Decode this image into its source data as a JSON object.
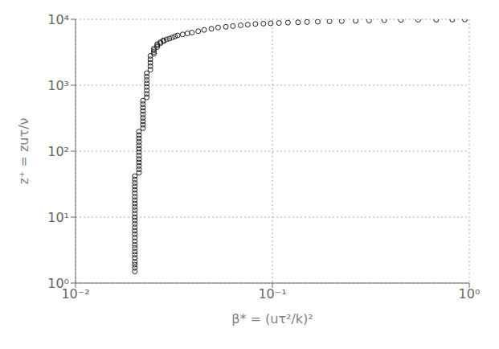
{
  "chart_data": {
    "type": "scatter",
    "xlabel": "β* = (uτ²/k)²",
    "ylabel": "z⁺ = zuτ/ν",
    "log": true,
    "grid": true,
    "color": "#222222",
    "marker": "circle",
    "xlim": [
      0.01,
      1
    ],
    "ylim": [
      1,
      10000
    ],
    "xticks": [
      {
        "value": 0.01,
        "label": "10⁻²"
      },
      {
        "value": 0.1,
        "label": "10⁻¹"
      },
      {
        "value": 1,
        "label": "10⁰"
      }
    ],
    "yticks": [
      {
        "value": 1,
        "label": "10⁰"
      },
      {
        "value": 10,
        "label": "10¹"
      },
      {
        "value": 100,
        "label": "10²"
      },
      {
        "value": 1000,
        "label": "10³"
      },
      {
        "value": 10000,
        "label": "10⁴"
      }
    ],
    "x": [
      0.02,
      0.02,
      0.02,
      0.02,
      0.02,
      0.02,
      0.02,
      0.02,
      0.02,
      0.02,
      0.02,
      0.02,
      0.02,
      0.02,
      0.02,
      0.02,
      0.02,
      0.02,
      0.02,
      0.02,
      0.02,
      0.02,
      0.02,
      0.02,
      0.02,
      0.02,
      0.02,
      0.02,
      0.02,
      0.021,
      0.021,
      0.021,
      0.021,
      0.021,
      0.021,
      0.021,
      0.021,
      0.021,
      0.021,
      0.021,
      0.021,
      0.021,
      0.022,
      0.022,
      0.022,
      0.022,
      0.022,
      0.022,
      0.022,
      0.022,
      0.022,
      0.023,
      0.023,
      0.023,
      0.023,
      0.023,
      0.023,
      0.023,
      0.023,
      0.024,
      0.024,
      0.024,
      0.024,
      0.024,
      0.025,
      0.025,
      0.025,
      0.025,
      0.026,
      0.026,
      0.026,
      0.027,
      0.027,
      0.028,
      0.028,
      0.029,
      0.03,
      0.031,
      0.032,
      0.033,
      0.035,
      0.037,
      0.039,
      0.042,
      0.045,
      0.049,
      0.053,
      0.058,
      0.063,
      0.069,
      0.075,
      0.082,
      0.09,
      0.098,
      0.108,
      0.12,
      0.135,
      0.15,
      0.17,
      0.195,
      0.225,
      0.265,
      0.31,
      0.37,
      0.45,
      0.55,
      0.68,
      0.82,
      0.95
    ],
    "values": [
      1.5,
      1.7,
      1.9,
      2.1,
      2.4,
      2.7,
      3.0,
      3.4,
      3.8,
      4.3,
      4.9,
      5.5,
      6.2,
      7.0,
      7.9,
      8.9,
      10.0,
      11.3,
      12.7,
      14.3,
      16.1,
      18.1,
      20.4,
      23.0,
      25.9,
      29.2,
      32.9,
      37.1,
      41.8,
      47.1,
      53.1,
      59.8,
      67.4,
      76.0,
      85.7,
      96.6,
      108.9,
      122.7,
      138.3,
      155.9,
      175.7,
      198.0,
      223.2,
      251.6,
      283.5,
      319.5,
      360.2,
      406.1,
      457.8,
      516.2,
      581.9,
      656.1,
      739.8,
      834.2,
      940.8,
      1061.3,
      1197.3,
      1350.8,
      1524.4,
      1719.9,
      1940.6,
      2189.7,
      2470.8,
      2787.9,
      3000,
      3200,
      3400,
      3600,
      3800,
      4000,
      4200,
      4350,
      4500,
      4650,
      4800,
      4950,
      5100,
      5300,
      5500,
      5700,
      5900,
      6100,
      6300,
      6600,
      6900,
      7200,
      7500,
      7700,
      7900,
      8100,
      8300,
      8500,
      8600,
      8700,
      8800,
      8900,
      9000,
      9100,
      9200,
      9300,
      9400,
      9500,
      9600,
      9700,
      9800,
      9850,
      9870,
      9900,
      9950
    ]
  }
}
